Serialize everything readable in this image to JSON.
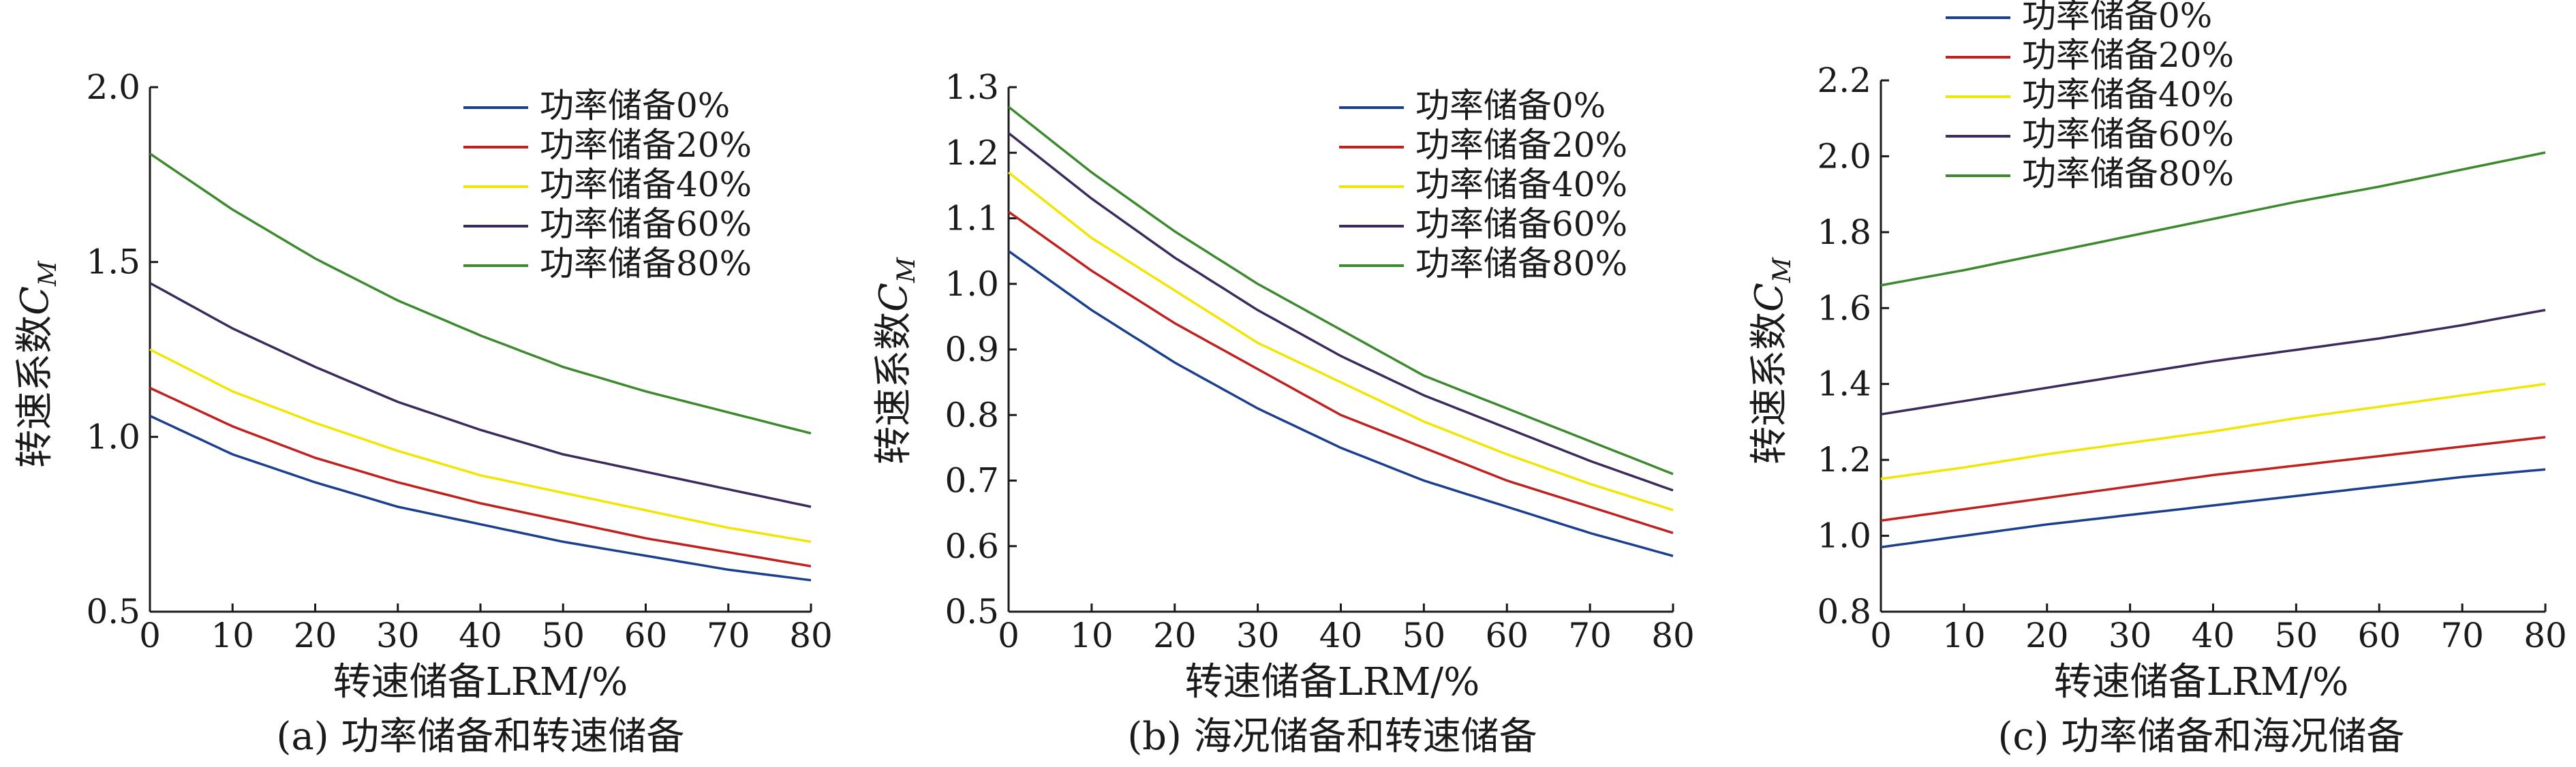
{
  "chart_data": [
    {
      "type": "line",
      "caption": "(a) 功率储备和转速储备",
      "xlabel": "转速储备LRM/%",
      "ylabel_main": "转速系数",
      "ylabel_symbol": "C",
      "ylabel_subscript": "M",
      "xlim": [
        0,
        80
      ],
      "ylim": [
        0.5,
        2.0
      ],
      "xticks": [
        0,
        10,
        20,
        30,
        40,
        50,
        60,
        70,
        80
      ],
      "yticks": [
        0.5,
        1.0,
        1.5,
        2.0
      ],
      "ytick_labels": [
        "0.5",
        "1.0",
        "1.5",
        "2.0"
      ],
      "x": [
        0,
        10,
        20,
        30,
        40,
        50,
        60,
        70,
        80
      ],
      "series": [
        {
          "name": "功率储备0%",
          "color": "#1b3f8f",
          "values": [
            1.06,
            0.95,
            0.87,
            0.8,
            0.75,
            0.7,
            0.66,
            0.62,
            0.59
          ]
        },
        {
          "name": "功率储备20%",
          "color": "#c0211f",
          "values": [
            1.14,
            1.03,
            0.94,
            0.87,
            0.81,
            0.76,
            0.71,
            0.67,
            0.63
          ]
        },
        {
          "name": "功率储备40%",
          "color": "#f2e600",
          "values": [
            1.25,
            1.13,
            1.04,
            0.96,
            0.89,
            0.84,
            0.79,
            0.74,
            0.7
          ]
        },
        {
          "name": "功率储备60%",
          "color": "#3b2a5c",
          "values": [
            1.44,
            1.31,
            1.2,
            1.1,
            1.02,
            0.95,
            0.9,
            0.85,
            0.8
          ]
        },
        {
          "name": "功率储备80%",
          "color": "#3c8a2e",
          "values": [
            1.81,
            1.65,
            1.51,
            1.39,
            1.29,
            1.2,
            1.13,
            1.07,
            1.01
          ]
        }
      ]
    },
    {
      "type": "line",
      "caption": "(b) 海况储备和转速储备",
      "xlabel": "转速储备LRM/%",
      "ylabel_main": "转速系数",
      "ylabel_symbol": "C",
      "ylabel_subscript": "M",
      "xlim": [
        0,
        80
      ],
      "ylim": [
        0.5,
        1.3
      ],
      "xticks": [
        0,
        10,
        20,
        30,
        40,
        50,
        60,
        70,
        80
      ],
      "yticks": [
        0.5,
        0.6,
        0.7,
        0.8,
        0.9,
        1.0,
        1.1,
        1.2,
        1.3
      ],
      "ytick_labels": [
        "0.5",
        "0.6",
        "0.7",
        "0.8",
        "0.9",
        "1.0",
        "1.1",
        "1.2",
        "1.3"
      ],
      "x": [
        0,
        10,
        20,
        30,
        40,
        50,
        60,
        70,
        80
      ],
      "series": [
        {
          "name": "功率储备0%",
          "color": "#1b3f8f",
          "values": [
            1.05,
            0.96,
            0.88,
            0.81,
            0.75,
            0.7,
            0.66,
            0.62,
            0.585
          ]
        },
        {
          "name": "功率储备20%",
          "color": "#c0211f",
          "values": [
            1.11,
            1.02,
            0.94,
            0.87,
            0.8,
            0.75,
            0.7,
            0.66,
            0.62
          ]
        },
        {
          "name": "功率储备40%",
          "color": "#f2e600",
          "values": [
            1.17,
            1.07,
            0.99,
            0.91,
            0.85,
            0.79,
            0.74,
            0.695,
            0.655
          ]
        },
        {
          "name": "功率储备60%",
          "color": "#3b2a5c",
          "values": [
            1.23,
            1.13,
            1.04,
            0.96,
            0.89,
            0.83,
            0.78,
            0.73,
            0.685
          ]
        },
        {
          "name": "功率储备80%",
          "color": "#3c8a2e",
          "values": [
            1.27,
            1.17,
            1.08,
            1.0,
            0.93,
            0.86,
            0.81,
            0.76,
            0.71
          ]
        }
      ]
    },
    {
      "type": "line",
      "caption": "(c) 功率储备和海况储备",
      "xlabel": "转速储备LRM/%",
      "ylabel_main": "转速系数",
      "ylabel_symbol": "C",
      "ylabel_subscript": "M",
      "xlim": [
        0,
        80
      ],
      "ylim": [
        0.8,
        2.2
      ],
      "xticks": [
        0,
        10,
        20,
        30,
        40,
        50,
        60,
        70,
        80
      ],
      "yticks": [
        0.8,
        1.0,
        1.2,
        1.4,
        1.6,
        1.8,
        2.0,
        2.2
      ],
      "ytick_labels": [
        "0.8",
        "1.0",
        "1.2",
        "1.4",
        "1.6",
        "1.8",
        "2.0",
        "2.2"
      ],
      "x": [
        0,
        10,
        20,
        30,
        40,
        50,
        60,
        70,
        80
      ],
      "series": [
        {
          "name": "功率储备0%",
          "color": "#1b3f8f",
          "values": [
            0.97,
            1.0,
            1.03,
            1.055,
            1.08,
            1.105,
            1.13,
            1.155,
            1.175
          ]
        },
        {
          "name": "功率储备20%",
          "color": "#c0211f",
          "values": [
            1.04,
            1.07,
            1.1,
            1.13,
            1.16,
            1.185,
            1.21,
            1.235,
            1.26
          ]
        },
        {
          "name": "功率储备40%",
          "color": "#f2e600",
          "values": [
            1.15,
            1.18,
            1.215,
            1.245,
            1.275,
            1.31,
            1.34,
            1.37,
            1.4
          ]
        },
        {
          "name": "功率储备60%",
          "color": "#3b2a5c",
          "values": [
            1.32,
            1.355,
            1.39,
            1.425,
            1.46,
            1.49,
            1.52,
            1.555,
            1.595
          ]
        },
        {
          "name": "功率储备80%",
          "color": "#3c8a2e",
          "values": [
            1.66,
            1.7,
            1.745,
            1.79,
            1.835,
            1.88,
            1.92,
            1.965,
            2.01
          ]
        }
      ]
    }
  ]
}
